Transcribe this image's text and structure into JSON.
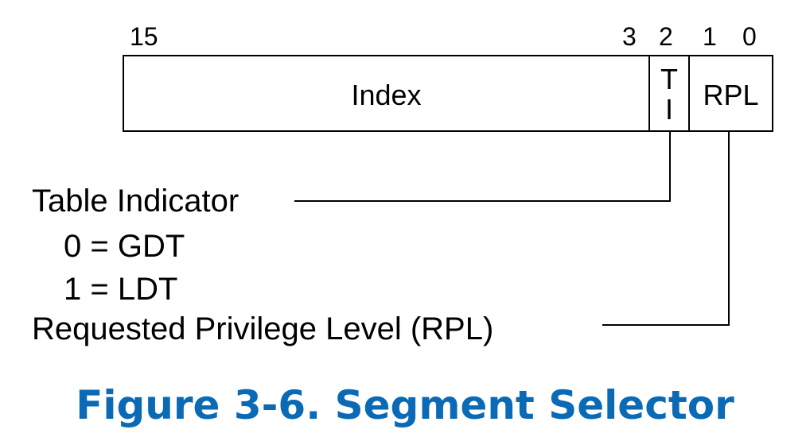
{
  "bit_labels": {
    "b15": "15",
    "b3": "3",
    "b2": "2",
    "b1": "1",
    "b0": "0"
  },
  "fields": {
    "index": "Index",
    "ti_top": "T",
    "ti_bottom": "I",
    "rpl": "RPL"
  },
  "descriptions": {
    "table_indicator": "Table Indicator",
    "gdt": "0 = GDT",
    "ldt": "1 = LDT",
    "rpl": "Requested Privilege Level (RPL)"
  },
  "caption": "Figure 3-6.  Segment Selector",
  "colors": {
    "caption": "#0a6ab5",
    "lines": "#000000"
  }
}
